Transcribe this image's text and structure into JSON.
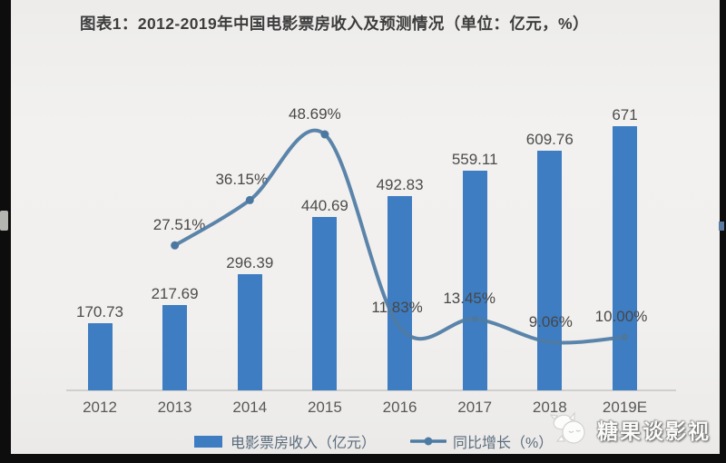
{
  "title": "图表1：2012-2019年中国电影票房收入及预测情况（单位：亿元，%）",
  "chart_data": {
    "type": "bar",
    "title": "图表1：2012-2019年中国电影票房收入及预测情况（单位：亿元，%）",
    "categories": [
      "2012",
      "2013",
      "2014",
      "2015",
      "2016",
      "2017",
      "2018",
      "2019E"
    ],
    "series": [
      {
        "name": "电影票房收入（亿元）",
        "type": "bar",
        "color": "#3e7dc2",
        "values": [
          170.73,
          217.69,
          296.39,
          440.69,
          492.83,
          559.11,
          609.76,
          671
        ],
        "labels": [
          "170.73",
          "217.69",
          "296.39",
          "440.69",
          "492.83",
          "559.11",
          "609.76",
          "671"
        ]
      },
      {
        "name": "同比增长（%）",
        "type": "line",
        "color": "#4e7ba4",
        "values": [
          null,
          27.51,
          36.15,
          48.69,
          11.83,
          13.45,
          9.06,
          10.0
        ],
        "labels": [
          null,
          "27.51%",
          "36.15%",
          "48.69%",
          "11.83%",
          "13.45%",
          "9.06%",
          "10.00%"
        ]
      }
    ],
    "xlabel": "",
    "ylabel": "",
    "ylim_bar": [
      0,
      730
    ],
    "ylim_line_pct": [
      0,
      55
    ],
    "grid": false,
    "legend_position": "bottom"
  },
  "legend": {
    "items": [
      {
        "label": "电影票房收入（亿元）",
        "swatch": "bar-swatch",
        "color": "#3e7dc2"
      },
      {
        "label": "同比增长（%）",
        "swatch": "line-marker",
        "color": "#4e7ba4"
      }
    ]
  },
  "watermark": {
    "text": "糖果谈影视",
    "icon": "candy-mascot-icon"
  },
  "colors": {
    "bar": "#3e7dc2",
    "line": "#4e7ba4",
    "marker": "#4b78a1",
    "background": "#f0efed",
    "value_label": "#4c4c4c",
    "axis_text": "#585858",
    "axis_line": "#cfcfcd",
    "title_text": "#3d3d3d",
    "legend_text": "#5a6b7d",
    "frame": "#0d0d0d"
  }
}
